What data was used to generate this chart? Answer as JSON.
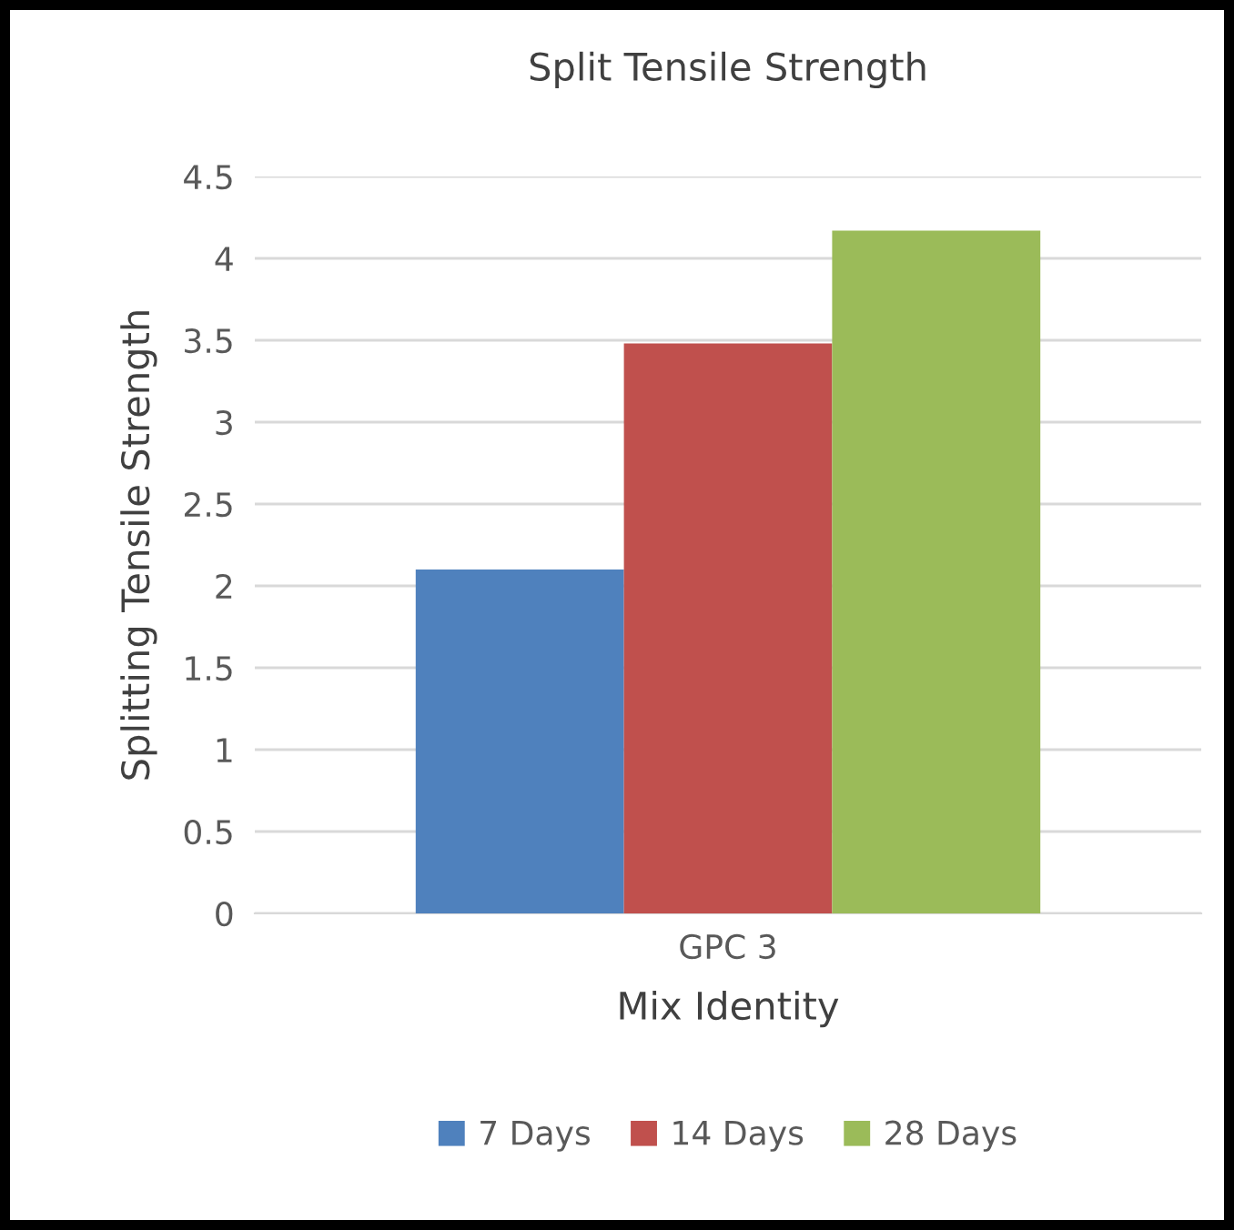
{
  "chart_data": {
    "type": "bar",
    "title": "Split Tensile Strength",
    "xlabel": "Mix Identity",
    "ylabel": "Splitting Tensile Strength",
    "categories": [
      "GPC 3"
    ],
    "series": [
      {
        "name": "7 Days",
        "color": "#4f81bd",
        "values": [
          2.1
        ]
      },
      {
        "name": "14 Days",
        "color": "#c0504d",
        "values": [
          3.48
        ]
      },
      {
        "name": "28 Days",
        "color": "#9bbb59",
        "values": [
          4.17
        ]
      }
    ],
    "ylim": [
      0,
      4.5
    ],
    "yticks": [
      0,
      0.5,
      1,
      1.5,
      2,
      2.5,
      3,
      3.5,
      4,
      4.5
    ],
    "grid": "y",
    "legend": "bottom"
  }
}
